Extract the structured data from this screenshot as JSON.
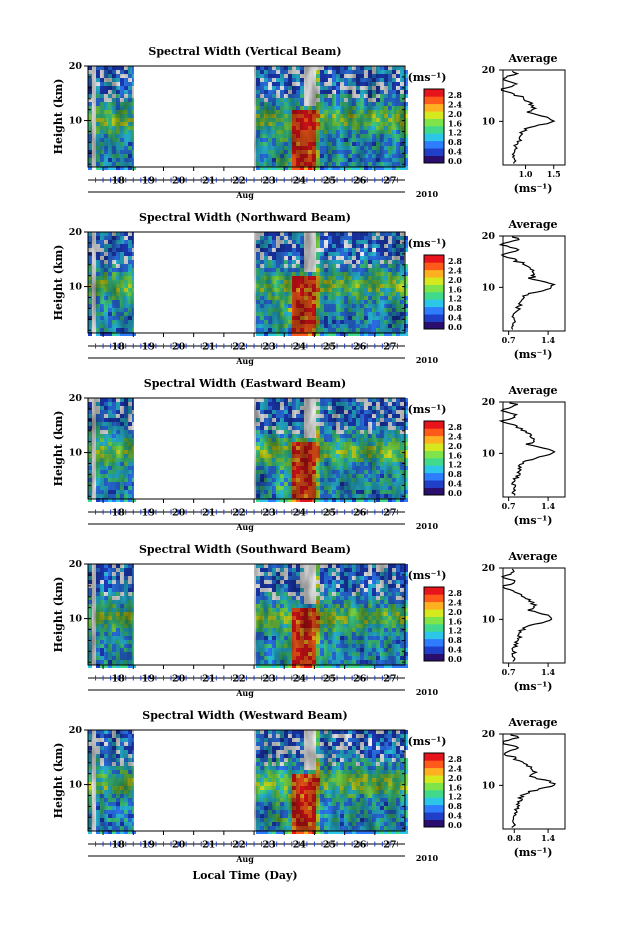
{
  "chart_data": {
    "type": "heatmap",
    "colorbar_label": "(ms⁻¹)",
    "colorbar_ticks": [
      "0.0",
      "0.4",
      "0.8",
      "1.2",
      "1.6",
      "2.0",
      "2.4",
      "2.8"
    ],
    "colors": [
      "#2a0e6e",
      "#1f3fc9",
      "#2f7dff",
      "#2bc6e8",
      "#41d98c",
      "#7fe44a",
      "#d6e81e",
      "#ffb020",
      "#ff5a1a",
      "#e8141b"
    ],
    "x_tick_labels": [
      "18",
      "19",
      "20",
      "21",
      "22",
      "23",
      "24",
      "25",
      "26",
      "27"
    ],
    "x_month": "Aug",
    "x_year": "2010",
    "xlabel": "Local Time (Day)",
    "ylabel": "Height (km)",
    "y_tick_labels": [
      "20",
      "10"
    ],
    "ylim": [
      1.5,
      20
    ],
    "data_gaps_days": [
      [
        19.0,
        23.0
      ]
    ],
    "avg_title": "Average",
    "avg_xlabel": "(ms⁻¹)",
    "panels": [
      {
        "title": "Spectral Width (Vertical Beam)",
        "avg_xticks": [
          "1.0",
          "1.5"
        ],
        "avg_xlim": [
          0.6,
          1.7
        ]
      },
      {
        "title": "Spectral Width (Northward Beam)",
        "avg_xticks": [
          "0.7",
          "1.4"
        ],
        "avg_xlim": [
          0.6,
          1.7
        ]
      },
      {
        "title": "Spectral Width (Eastward Beam)",
        "avg_xticks": [
          "0.7",
          "1.4"
        ],
        "avg_xlim": [
          0.6,
          1.7
        ]
      },
      {
        "title": "Spectral Width (Southward Beam)",
        "avg_xticks": [
          "0.7",
          "1.4"
        ],
        "avg_xlim": [
          0.6,
          1.7
        ]
      },
      {
        "title": "Spectral Width (Westward Beam)",
        "avg_xticks": [
          "0.8",
          "1.4"
        ],
        "avg_xlim": [
          0.6,
          1.7
        ]
      }
    ]
  }
}
